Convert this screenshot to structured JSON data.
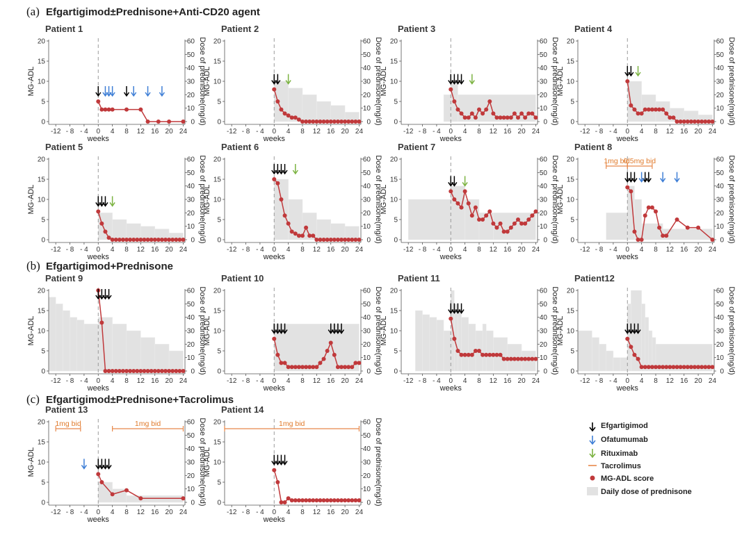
{
  "colors": {
    "efgartigimod": "#000000",
    "ofatumumab": "#3f7fd6",
    "rituximab": "#7cb342",
    "tacrolimus": "#e8884a",
    "mgadl": "#c0393b",
    "prednisone": "#e2e2e2",
    "dash": "#9a9a9a"
  },
  "sections": [
    {
      "letter": "(a)",
      "title": "Efgartigimod±Prednisone+Anti-CD20 agent"
    },
    {
      "letter": "(b)",
      "title": "Efgartigimod+Prednisone"
    },
    {
      "letter": "(c)",
      "title": "Efgartigimod±Prednisone+Tacrolimus"
    }
  ],
  "axis": {
    "xlabel": "weeks",
    "ylabel_left": "MG-ADL",
    "ylabel_right": "Dose of prednisone(mg/d)",
    "x_ticks": [
      -12,
      -8,
      -4,
      0,
      4,
      8,
      12,
      16,
      20,
      24
    ],
    "x_tick_labels": [
      "-12",
      "- 8",
      "- 4",
      "0",
      "4",
      "8",
      "12",
      "16",
      "20",
      "24"
    ],
    "y_left_ticks": [
      0,
      5,
      10,
      15,
      20
    ],
    "y_right_ticks": [
      0,
      10,
      20,
      30,
      40,
      50,
      60
    ],
    "xlim": [
      -14,
      24.5
    ],
    "ylim_left": [
      0,
      20
    ],
    "ylim_right": [
      0,
      60
    ]
  },
  "legend": {
    "efgartigimod": "Efgartigimod",
    "ofatumumab": "Ofatumumab",
    "rituximab": "Rituximab",
    "tacrolimus": "Tacrolimus",
    "mgadl": "MG-ADL score",
    "prednisone": "Daily dose of prednisone"
  },
  "chart_data": [
    {
      "type": "line",
      "title": "Patient  1",
      "mgadl": {
        "x": [
          0,
          1,
          2,
          3,
          4,
          8,
          12,
          14,
          17,
          20,
          24
        ],
        "y": [
          5,
          3,
          3,
          3,
          3,
          3,
          3,
          0,
          0,
          0,
          0
        ]
      },
      "prednisone": [],
      "efgartigimod": [
        0,
        8
      ],
      "ofatumumab": [
        2,
        3,
        4,
        10,
        14,
        18
      ],
      "rituximab": [],
      "tacrolimus": []
    },
    {
      "type": "line",
      "title": "Patient  2",
      "mgadl": {
        "x": [
          0,
          1,
          2,
          3,
          4,
          5,
          6,
          7,
          8,
          9,
          10,
          11,
          12,
          13,
          14,
          15,
          16,
          17,
          18,
          19,
          20,
          21,
          22,
          23,
          24
        ],
        "y": [
          8,
          5,
          3,
          2,
          1.5,
          1,
          1,
          0.5,
          0,
          0,
          0,
          0,
          0,
          0,
          0,
          0,
          0,
          0,
          0,
          0,
          0,
          0,
          0,
          0,
          0
        ]
      },
      "prednisone": [
        [
          0,
          4,
          30
        ],
        [
          4,
          8,
          25
        ],
        [
          8,
          12,
          20
        ],
        [
          12,
          16,
          15
        ],
        [
          16,
          20,
          12
        ],
        [
          20,
          24,
          7
        ]
      ],
      "efgartigimod": [
        0,
        1
      ],
      "ofatumumab": [],
      "rituximab": [
        4
      ],
      "tacrolimus": []
    },
    {
      "type": "line",
      "title": "Patient  3",
      "mgadl": {
        "x": [
          0,
          1,
          2,
          3,
          4,
          5,
          6,
          7,
          8,
          9,
          10,
          11,
          12,
          13,
          14,
          15,
          16,
          17,
          18,
          19,
          20,
          21,
          22,
          23,
          24
        ],
        "y": [
          8,
          5,
          3,
          2,
          1,
          1,
          2,
          1,
          3,
          2,
          3,
          5,
          2,
          1,
          1,
          1,
          1,
          1,
          2,
          1,
          2,
          1,
          2,
          2,
          1
        ]
      },
      "prednisone": [
        [
          -2,
          0,
          20
        ],
        [
          0,
          2,
          30
        ],
        [
          2,
          24,
          20
        ]
      ],
      "efgartigimod": [
        0,
        1,
        2,
        3
      ],
      "ofatumumab": [],
      "rituximab": [
        6
      ],
      "tacrolimus": []
    },
    {
      "type": "line",
      "title": "Patient  4",
      "mgadl": {
        "x": [
          0,
          1,
          2,
          3,
          4,
          5,
          6,
          7,
          8,
          9,
          10,
          11,
          12,
          13,
          14,
          15,
          16,
          17,
          18,
          19,
          20,
          21,
          22,
          23,
          24
        ],
        "y": [
          10,
          4,
          3,
          2,
          2,
          3,
          3,
          3,
          3,
          3,
          3,
          2,
          1,
          1,
          0,
          0,
          0,
          0,
          0,
          0,
          0,
          0,
          0,
          0,
          0
        ]
      },
      "prednisone": [
        [
          0,
          4,
          30
        ],
        [
          4,
          8,
          20
        ],
        [
          8,
          12,
          15
        ],
        [
          12,
          16,
          10
        ],
        [
          16,
          20,
          8
        ],
        [
          20,
          24,
          5
        ]
      ],
      "efgartigimod": [
        0,
        1
      ],
      "ofatumumab": [],
      "rituximab": [
        3
      ],
      "tacrolimus": []
    },
    {
      "type": "line",
      "title": "Patient  5",
      "mgadl": {
        "x": [
          0,
          1,
          2,
          3,
          4,
          5,
          6,
          7,
          8,
          9,
          10,
          11,
          12,
          13,
          14,
          15,
          16,
          17,
          18,
          19,
          20,
          21,
          22,
          23,
          24
        ],
        "y": [
          7,
          4,
          2,
          0.5,
          0,
          0,
          0,
          0,
          0,
          0,
          0,
          0,
          0,
          0,
          0,
          0,
          0,
          0,
          0,
          0,
          0,
          0,
          0,
          0,
          0
        ]
      },
      "prednisone": [
        [
          0,
          4,
          20
        ],
        [
          4,
          8,
          15
        ],
        [
          8,
          12,
          12
        ],
        [
          12,
          16,
          10
        ],
        [
          16,
          20,
          8
        ],
        [
          20,
          24,
          5
        ]
      ],
      "efgartigimod": [
        0,
        1,
        2
      ],
      "ofatumumab": [],
      "rituximab": [
        4
      ],
      "tacrolimus": []
    },
    {
      "type": "line",
      "title": "Patient  6",
      "mgadl": {
        "x": [
          0,
          1,
          2,
          3,
          4,
          5,
          6,
          7,
          8,
          9,
          10,
          11,
          12,
          13,
          14,
          15,
          16,
          17,
          18,
          19,
          20,
          21,
          22,
          23,
          24
        ],
        "y": [
          15,
          14,
          10,
          6,
          4,
          2,
          1.5,
          1,
          1,
          3,
          1,
          1,
          0,
          0,
          0,
          0,
          0,
          0,
          0,
          0,
          0,
          0,
          0,
          0,
          0
        ]
      },
      "prednisone": [
        [
          0,
          4,
          45
        ],
        [
          4,
          8,
          30
        ],
        [
          8,
          12,
          20
        ],
        [
          12,
          16,
          15
        ],
        [
          16,
          20,
          12
        ],
        [
          20,
          24,
          10
        ]
      ],
      "efgartigimod": [
        0,
        1,
        2,
        3
      ],
      "ofatumumab": [],
      "rituximab": [
        6
      ],
      "tacrolimus": []
    },
    {
      "type": "line",
      "title": "Patient  7",
      "mgadl": {
        "x": [
          0,
          1,
          2,
          3,
          4,
          5,
          6,
          7,
          8,
          9,
          10,
          11,
          12,
          13,
          14,
          15,
          16,
          17,
          18,
          19,
          20,
          21,
          22,
          23,
          24
        ],
        "y": [
          12,
          10,
          9,
          8,
          12,
          9,
          6,
          8,
          5,
          5,
          6,
          7,
          4,
          3,
          4,
          2,
          2,
          3,
          4,
          5,
          4,
          4,
          5,
          6,
          7
        ]
      },
      "prednisone": [
        [
          -12,
          0,
          30
        ],
        [
          0,
          4,
          40
        ],
        [
          4,
          8,
          30
        ],
        [
          8,
          12,
          20
        ],
        [
          12,
          24,
          20
        ]
      ],
      "efgartigimod": [
        0,
        1
      ],
      "ofatumumab": [],
      "rituximab": [
        4
      ],
      "tacrolimus": []
    },
    {
      "type": "line",
      "title": "Patient  8",
      "mgadl": {
        "x": [
          0,
          1,
          2,
          3,
          4,
          5,
          6,
          7,
          8,
          9,
          10,
          11,
          14,
          17,
          20,
          24
        ],
        "y": [
          13,
          12,
          2,
          0,
          0,
          6,
          8,
          8,
          7,
          3,
          1,
          1,
          5,
          3,
          3,
          0
        ]
      },
      "prednisone": [
        [
          -6,
          0,
          20
        ],
        [
          0,
          2,
          40
        ],
        [
          2,
          4,
          30
        ],
        [
          4,
          10,
          12
        ],
        [
          10,
          24,
          8
        ]
      ],
      "efgartigimod": [
        0,
        1,
        2,
        5,
        6
      ],
      "ofatumumab": [
        4,
        10,
        14
      ],
      "rituximab": [],
      "tacrolimus": [
        {
          "from": -6,
          "to": 0,
          "label": "1mg bid"
        },
        {
          "from": 0,
          "to": 7,
          "label": "0.5mg bid"
        }
      ]
    },
    {
      "type": "line",
      "title": "Patient 9",
      "mgadl": {
        "x": [
          0,
          1,
          2,
          3,
          4,
          5,
          6,
          7,
          8,
          9,
          10,
          11,
          12,
          13,
          14,
          15,
          16,
          17,
          18,
          19,
          20,
          21,
          22,
          23,
          24
        ],
        "y": [
          20,
          12,
          0,
          0,
          0,
          0,
          0,
          0,
          0,
          0,
          0,
          0,
          0,
          0,
          0,
          0,
          0,
          0,
          0,
          0,
          0,
          0,
          0,
          0,
          0
        ]
      },
      "prednisone": [
        [
          -14,
          -12,
          55
        ],
        [
          -12,
          -10,
          50
        ],
        [
          -10,
          -8,
          45
        ],
        [
          -8,
          -6,
          40
        ],
        [
          -6,
          -4,
          38
        ],
        [
          -4,
          0,
          35
        ],
        [
          0,
          4,
          40
        ],
        [
          4,
          8,
          35
        ],
        [
          8,
          12,
          30
        ],
        [
          12,
          16,
          25
        ],
        [
          16,
          20,
          20
        ],
        [
          20,
          24,
          15
        ]
      ],
      "efgartigimod": [
        0,
        1,
        2,
        3
      ],
      "ofatumumab": [],
      "rituximab": [],
      "tacrolimus": []
    },
    {
      "type": "line",
      "title": "Patient 10",
      "mgadl": {
        "x": [
          0,
          1,
          2,
          3,
          4,
          5,
          6,
          7,
          8,
          9,
          10,
          11,
          12,
          13,
          14,
          15,
          16,
          17,
          18,
          19,
          20,
          21,
          22,
          23,
          24
        ],
        "y": [
          8,
          4,
          2,
          2,
          1,
          1,
          1,
          1,
          1,
          1,
          1,
          1,
          1,
          2,
          3,
          5,
          7,
          4,
          1,
          1,
          1,
          1,
          1,
          2,
          2
        ]
      },
      "prednisone": [
        [
          0,
          24,
          35
        ]
      ],
      "efgartigimod": [
        0,
        1,
        2,
        3,
        16,
        17,
        18,
        19
      ],
      "ofatumumab": [],
      "rituximab": [],
      "tacrolimus": []
    },
    {
      "type": "line",
      "title": "Patient 11",
      "mgadl": {
        "x": [
          0,
          1,
          2,
          3,
          4,
          5,
          6,
          7,
          8,
          9,
          10,
          11,
          12,
          13,
          14,
          15,
          16,
          17,
          18,
          19,
          20,
          21,
          22,
          23,
          24
        ],
        "y": [
          13,
          8,
          5,
          4,
          4,
          4,
          4,
          5,
          5,
          4,
          4,
          4,
          4,
          4,
          4,
          3,
          3,
          3,
          3,
          3,
          3,
          3,
          3,
          3,
          3
        ]
      },
      "prednisone": [
        [
          -10,
          -8,
          45
        ],
        [
          -8,
          -6,
          42
        ],
        [
          -6,
          -4,
          40
        ],
        [
          -4,
          -2,
          38
        ],
        [
          -2,
          0,
          30
        ],
        [
          0,
          1,
          60
        ],
        [
          1,
          2,
          50
        ],
        [
          2,
          3,
          45
        ],
        [
          3,
          5,
          40
        ],
        [
          5,
          7,
          35
        ],
        [
          7,
          9,
          30
        ],
        [
          9,
          10,
          35
        ],
        [
          10,
          12,
          30
        ],
        [
          12,
          16,
          25
        ],
        [
          16,
          20,
          20
        ],
        [
          20,
          24,
          15
        ]
      ],
      "efgartigimod": [
        0,
        1,
        2,
        3
      ],
      "ofatumumab": [],
      "rituximab": [],
      "tacrolimus": []
    },
    {
      "type": "line",
      "title": "Patient12",
      "mgadl": {
        "x": [
          0,
          1,
          2,
          3,
          4,
          5,
          6,
          7,
          8,
          9,
          10,
          11,
          12,
          13,
          14,
          15,
          16,
          17,
          18,
          19,
          20,
          21,
          22,
          23,
          24
        ],
        "y": [
          8,
          6,
          4,
          3,
          1,
          1,
          1,
          1,
          1,
          1,
          1,
          1,
          1,
          1,
          1,
          1,
          1,
          1,
          1,
          1,
          1,
          1,
          1,
          1,
          1
        ]
      },
      "prednisone": [
        [
          -14,
          -10,
          30
        ],
        [
          -10,
          -8,
          25
        ],
        [
          -8,
          -6,
          20
        ],
        [
          -6,
          -4,
          15
        ],
        [
          -4,
          -2,
          10
        ],
        [
          -2,
          0,
          10
        ],
        [
          0,
          1,
          50
        ],
        [
          1,
          4,
          60
        ],
        [
          4,
          5,
          50
        ],
        [
          5,
          6,
          40
        ],
        [
          6,
          7,
          30
        ],
        [
          7,
          8,
          25
        ],
        [
          8,
          24,
          20
        ]
      ],
      "efgartigimod": [
        0,
        1,
        2,
        3
      ],
      "ofatumumab": [],
      "rituximab": [],
      "tacrolimus": []
    },
    {
      "type": "line",
      "title": "Patient 13",
      "mgadl": {
        "x": [
          0,
          1,
          4,
          8,
          12,
          24
        ],
        "y": [
          7,
          5,
          2,
          3,
          1,
          1
        ]
      },
      "prednisone": [
        [
          0,
          4,
          15
        ],
        [
          4,
          8,
          10
        ],
        [
          8,
          24,
          5
        ]
      ],
      "efgartigimod": [
        0,
        1,
        2,
        3
      ],
      "ofatumumab": [
        -4
      ],
      "rituximab": [],
      "tacrolimus": [
        {
          "from": -12,
          "to": -5,
          "label": "1mg bid"
        },
        {
          "from": 4,
          "to": 24,
          "label": "1mg bid"
        }
      ]
    },
    {
      "type": "line",
      "title": "Patient 14",
      "mgadl": {
        "x": [
          0,
          1,
          2,
          3,
          4,
          5,
          6,
          7,
          8,
          9,
          10,
          11,
          12,
          13,
          14,
          15,
          16,
          17,
          18,
          19,
          20,
          21,
          22,
          23,
          24
        ],
        "y": [
          8,
          5,
          0,
          0,
          1,
          0.5,
          0.5,
          0.5,
          0.5,
          0.5,
          0.5,
          0.5,
          0.5,
          0.5,
          0.5,
          0.5,
          0.5,
          0.5,
          0.5,
          0.5,
          0.5,
          0.5,
          0.5,
          0.5,
          0.5
        ]
      },
      "prednisone": [],
      "efgartigimod": [
        0,
        1,
        2,
        3
      ],
      "ofatumumab": [],
      "rituximab": [],
      "tacrolimus": [
        {
          "from": -14,
          "to": 24,
          "label": "1mg bid"
        }
      ]
    }
  ]
}
